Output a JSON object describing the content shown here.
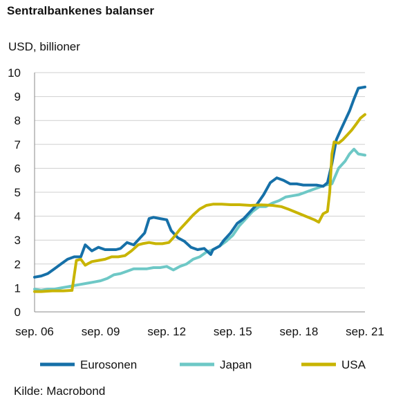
{
  "title": "Sentralbankenes balanser",
  "source": "Kilde: Macrobond",
  "colors": {
    "Eurosonen": "#1670a8",
    "Japan": "#6ec8c6",
    "USA": "#c8b400",
    "grid": "#cfcfcf",
    "axis": "#888888"
  },
  "chart_data": {
    "type": "line",
    "ylabel": "USD, billioner",
    "ylim": [
      0,
      10
    ],
    "yticks": [
      "0",
      "1",
      "2",
      "3",
      "4",
      "5",
      "6",
      "7",
      "8",
      "9",
      "10"
    ],
    "xlim": [
      2006.7,
      2021.7
    ],
    "xticks": [
      {
        "label": "sep. 06",
        "x": 2006.7
      },
      {
        "label": "sep. 09",
        "x": 2009.7
      },
      {
        "label": "sep. 12",
        "x": 2012.7
      },
      {
        "label": "sep. 15",
        "x": 2015.7
      },
      {
        "label": "sep. 18",
        "x": 2018.7
      },
      {
        "label": "sep. 21",
        "x": 2021.7
      }
    ],
    "grid": true,
    "legend": "bottom",
    "series": [
      {
        "name": "Eurosonen",
        "x": [
          2006.7,
          2007.0,
          2007.3,
          2007.6,
          2007.9,
          2008.2,
          2008.5,
          2008.8,
          2009.0,
          2009.3,
          2009.6,
          2009.9,
          2010.2,
          2010.4,
          2010.6,
          2010.9,
          2011.2,
          2011.5,
          2011.7,
          2011.9,
          2012.1,
          2012.4,
          2012.7,
          2012.9,
          2013.2,
          2013.5,
          2013.8,
          2014.1,
          2014.4,
          2014.7,
          2014.8,
          2015.1,
          2015.3,
          2015.6,
          2015.9,
          2016.2,
          2016.5,
          2016.8,
          2017.1,
          2017.4,
          2017.7,
          2018.0,
          2018.3,
          2018.6,
          2018.9,
          2019.2,
          2019.5,
          2019.8,
          2020.0,
          2020.2,
          2020.4,
          2020.6,
          2020.8,
          2021.0,
          2021.2,
          2021.4,
          2021.7
        ],
        "values": [
          1.45,
          1.5,
          1.6,
          1.8,
          2.0,
          2.2,
          2.3,
          2.3,
          2.8,
          2.55,
          2.7,
          2.6,
          2.6,
          2.6,
          2.65,
          2.9,
          2.8,
          3.1,
          3.3,
          3.9,
          3.95,
          3.9,
          3.85,
          3.4,
          3.1,
          2.95,
          2.7,
          2.6,
          2.65,
          2.4,
          2.6,
          2.75,
          3.0,
          3.3,
          3.7,
          3.9,
          4.2,
          4.5,
          4.9,
          5.4,
          5.6,
          5.5,
          5.35,
          5.35,
          5.3,
          5.3,
          5.3,
          5.25,
          5.4,
          6.2,
          7.2,
          7.6,
          8.0,
          8.4,
          8.9,
          9.35,
          9.4
        ]
      },
      {
        "name": "Japan",
        "x": [
          2006.7,
          2007.0,
          2007.3,
          2007.6,
          2007.9,
          2008.2,
          2008.5,
          2008.8,
          2009.1,
          2009.4,
          2009.7,
          2010.0,
          2010.3,
          2010.6,
          2010.9,
          2011.2,
          2011.5,
          2011.8,
          2012.1,
          2012.4,
          2012.7,
          2013.0,
          2013.3,
          2013.6,
          2013.9,
          2014.2,
          2014.5,
          2014.8,
          2015.1,
          2015.4,
          2015.7,
          2016.0,
          2016.3,
          2016.6,
          2016.9,
          2017.2,
          2017.5,
          2017.8,
          2018.1,
          2018.4,
          2018.7,
          2019.0,
          2019.3,
          2019.6,
          2019.9,
          2020.2,
          2020.5,
          2020.8,
          2021.0,
          2021.2,
          2021.4,
          2021.7
        ],
        "values": [
          0.95,
          0.9,
          0.95,
          0.95,
          1.0,
          1.05,
          1.1,
          1.15,
          1.2,
          1.25,
          1.3,
          1.4,
          1.55,
          1.6,
          1.7,
          1.8,
          1.8,
          1.8,
          1.85,
          1.85,
          1.9,
          1.75,
          1.9,
          2.0,
          2.2,
          2.3,
          2.5,
          2.6,
          2.75,
          2.95,
          3.2,
          3.6,
          3.9,
          4.2,
          4.4,
          4.4,
          4.55,
          4.65,
          4.8,
          4.85,
          4.9,
          5.0,
          5.1,
          5.2,
          5.3,
          5.35,
          6.0,
          6.3,
          6.6,
          6.8,
          6.6,
          6.55
        ]
      },
      {
        "name": "USA",
        "x": [
          2006.7,
          2007.0,
          2007.5,
          2008.0,
          2008.4,
          2008.6,
          2008.8,
          2009.0,
          2009.3,
          2009.6,
          2009.9,
          2010.2,
          2010.5,
          2010.8,
          2011.1,
          2011.4,
          2011.6,
          2011.9,
          2012.2,
          2012.5,
          2012.8,
          2013.0,
          2013.3,
          2013.6,
          2013.9,
          2014.2,
          2014.5,
          2014.8,
          2015.2,
          2015.6,
          2016.0,
          2016.5,
          2017.0,
          2017.5,
          2017.9,
          2018.2,
          2018.6,
          2019.0,
          2019.4,
          2019.6,
          2019.8,
          2020.0,
          2020.1,
          2020.2,
          2020.3,
          2020.5,
          2020.7,
          2020.9,
          2021.1,
          2021.3,
          2021.5,
          2021.7
        ],
        "values": [
          0.85,
          0.85,
          0.88,
          0.88,
          0.9,
          2.15,
          2.2,
          1.95,
          2.1,
          2.15,
          2.2,
          2.3,
          2.3,
          2.35,
          2.55,
          2.8,
          2.85,
          2.9,
          2.85,
          2.85,
          2.9,
          3.1,
          3.45,
          3.75,
          4.05,
          4.3,
          4.45,
          4.5,
          4.5,
          4.48,
          4.48,
          4.45,
          4.47,
          4.45,
          4.4,
          4.3,
          4.15,
          4.0,
          3.85,
          3.75,
          4.1,
          4.2,
          5.0,
          6.6,
          7.1,
          7.05,
          7.2,
          7.4,
          7.6,
          7.85,
          8.1,
          8.25
        ]
      }
    ]
  }
}
